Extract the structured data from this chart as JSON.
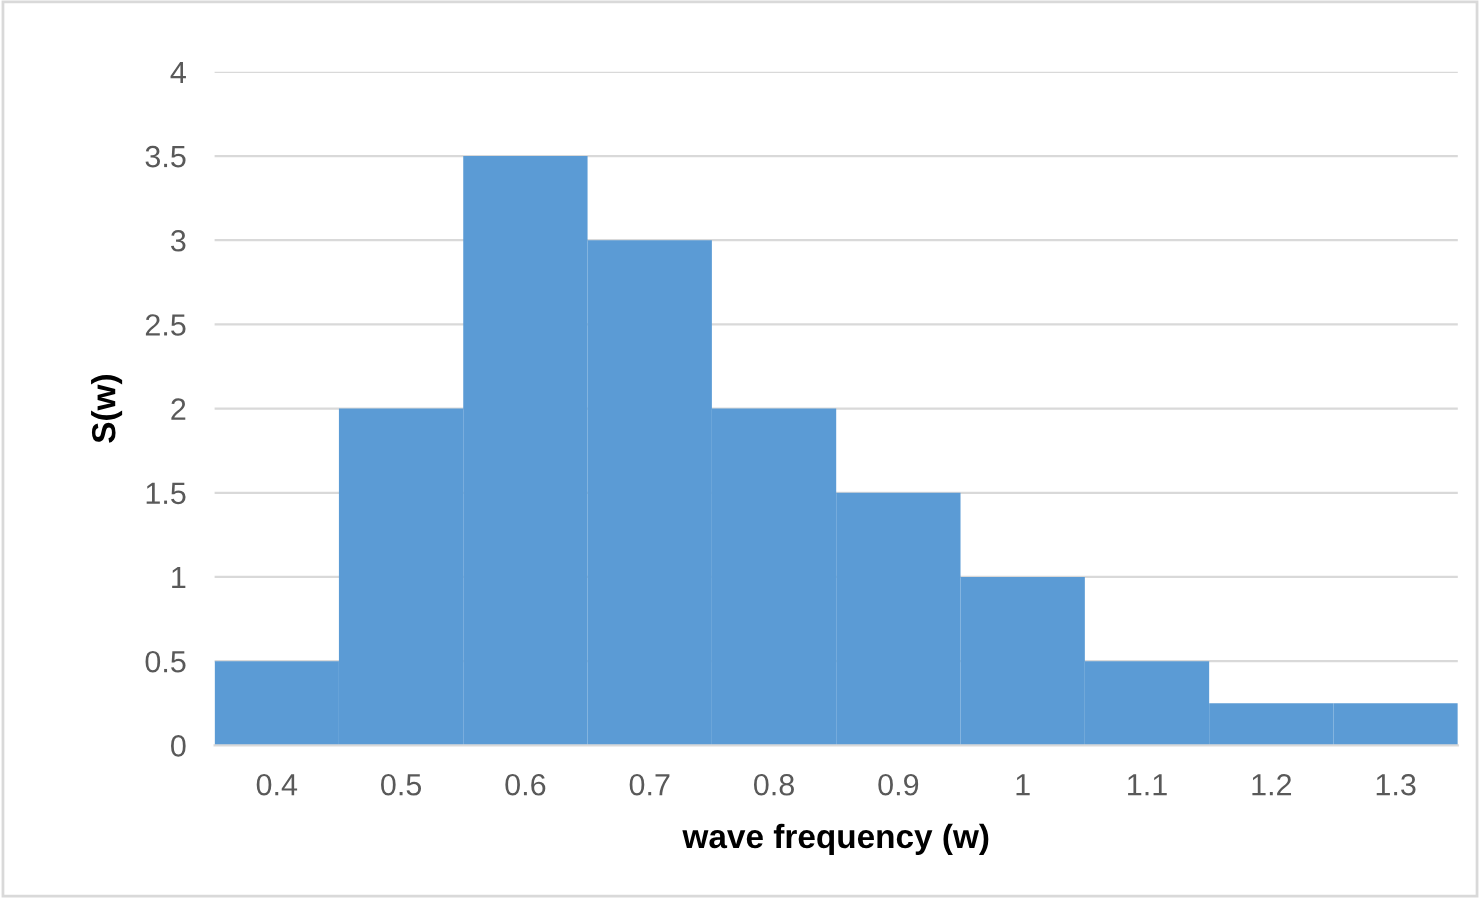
{
  "chart_data": {
    "type": "histogram",
    "xlabel": "wave frequency (w)",
    "ylabel": "S(w)",
    "bins": [
      0.35,
      0.45,
      0.55,
      0.65,
      0.75,
      0.85,
      0.95,
      1.05,
      1.15,
      1.25,
      1.35
    ],
    "values": [
      0.5,
      2,
      3.5,
      3,
      2,
      1.5,
      1,
      0.5,
      0.25,
      0.25
    ],
    "color": "#5b9bd5",
    "xlim": [
      0.35,
      1.35
    ],
    "xticks": [
      0.4,
      0.5,
      0.6,
      0.7,
      0.8,
      0.9,
      1,
      1.1,
      1.2,
      1.3
    ],
    "ylim": [
      0,
      4
    ],
    "yticks": [
      0,
      0.5,
      1,
      1.5,
      2,
      2.5,
      3,
      3.5,
      4
    ],
    "grid": "y"
  }
}
